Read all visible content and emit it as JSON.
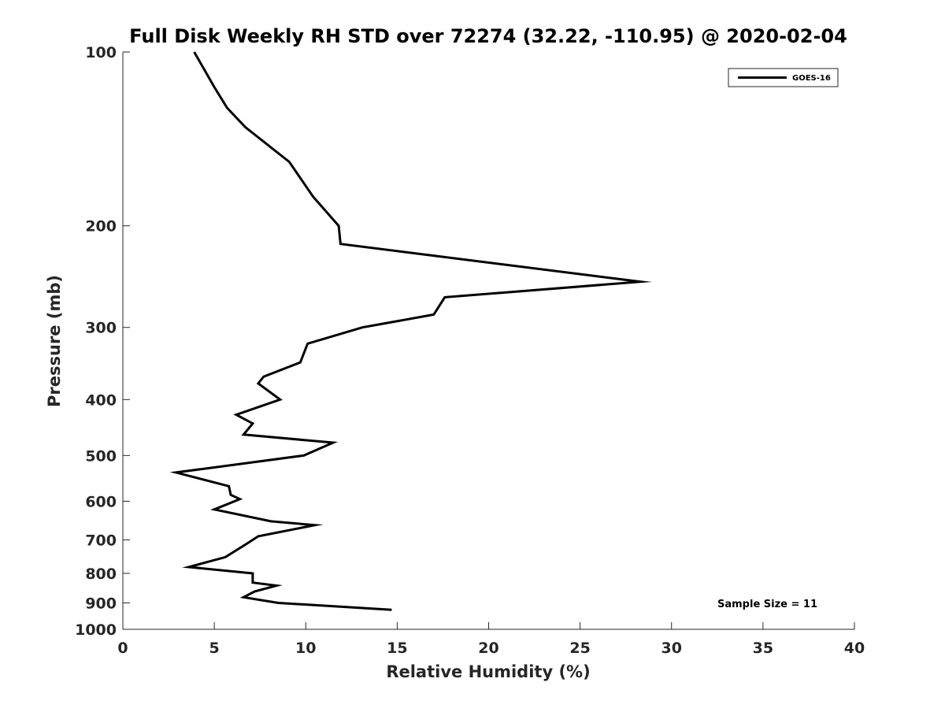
{
  "chart_data": {
    "type": "line",
    "title": "Full Disk Weekly RH STD over 72274 (32.22, -110.95) @ 2020-02-04",
    "xlabel": "Relative Humidity (%)",
    "ylabel": "Pressure (mb)",
    "xlim": [
      0,
      40
    ],
    "ylim": [
      100,
      1000
    ],
    "y_scale": "log",
    "y_inverted": true,
    "grid": false,
    "legend_position": "top-right",
    "x_ticks": [
      "0",
      "5",
      "10",
      "15",
      "20",
      "25",
      "30",
      "35",
      "40"
    ],
    "y_ticks": [
      "100",
      "200",
      "300",
      "400",
      "500",
      "600",
      "700",
      "800",
      "900",
      "1000"
    ],
    "annotation": "Sample Size = 11",
    "series": [
      {
        "name": "GOES-16",
        "color": "#000000",
        "x": [
          3.9,
          5.0,
          5.7,
          6.7,
          9.1,
          10.4,
          11.8,
          11.9,
          28.3,
          17.6,
          17.0,
          13.1,
          10.1,
          9.7,
          7.7,
          7.4,
          8.6,
          6.2,
          7.1,
          6.6,
          11.5,
          9.9,
          2.9,
          5.8,
          5.9,
          6.4,
          5.0,
          8.1,
          10.5,
          7.4,
          6.8,
          5.6,
          3.6,
          7.1,
          7.1,
          8.4,
          7.2,
          6.6,
          8.5,
          14.7
        ],
        "y": [
          100,
          115,
          125,
          135,
          155,
          178,
          200,
          215,
          250,
          266,
          285,
          300,
          320,
          345,
          365,
          375,
          400,
          425,
          440,
          460,
          475,
          500,
          535,
          565,
          585,
          595,
          620,
          650,
          660,
          690,
          710,
          750,
          780,
          800,
          830,
          840,
          860,
          880,
          900,
          925
        ]
      }
    ]
  }
}
